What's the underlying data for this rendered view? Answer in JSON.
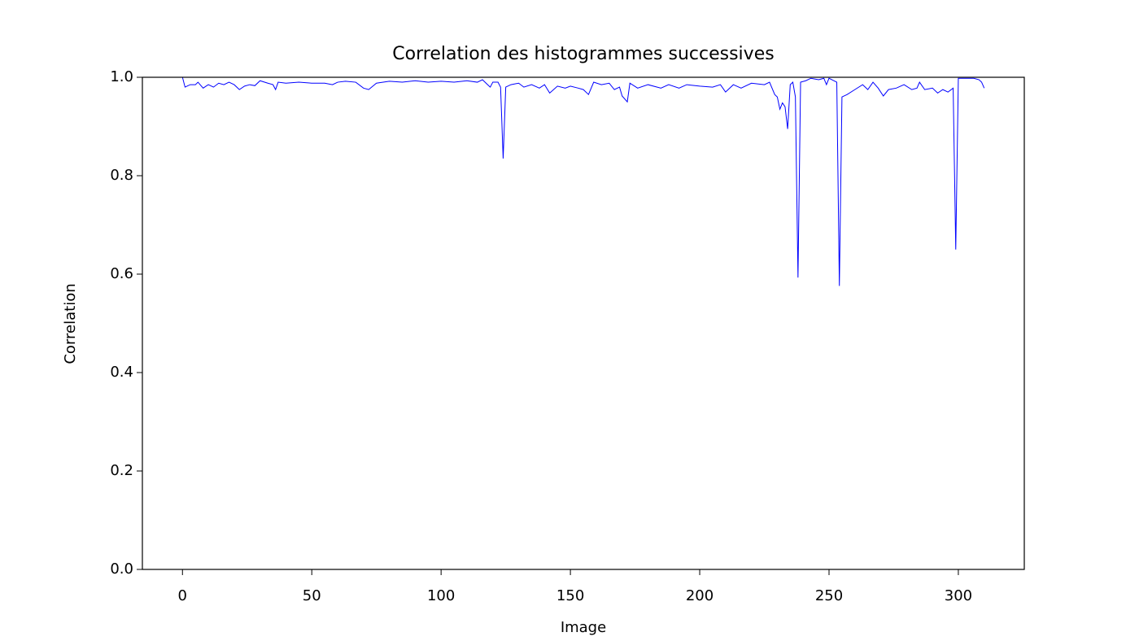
{
  "chart_data": {
    "type": "line",
    "title": "Correlation des histogrammes successives",
    "x_label": "Image",
    "y_label": "Correlation",
    "xlim": [
      -15.5,
      325.5
    ],
    "xticks": [
      0,
      50,
      100,
      150,
      200,
      250,
      300
    ],
    "ylim": [
      0,
      1
    ],
    "yticks": [
      {
        "value": 0,
        "label": "0.0"
      },
      0.2,
      0.4,
      0.6,
      0.8,
      {
        "value": 1,
        "label": "1.0"
      }
    ],
    "grid": false,
    "series": [
      {
        "color": "#0000ff",
        "x": [
          0,
          1,
          3,
          5,
          6,
          8,
          10,
          12,
          14,
          16,
          18,
          20,
          22,
          24,
          26,
          28,
          30,
          33,
          35,
          36,
          37,
          40,
          45,
          50,
          55,
          58,
          60,
          63,
          67,
          70,
          72,
          75,
          80,
          85,
          90,
          95,
          100,
          105,
          110,
          114,
          116,
          118,
          119,
          120,
          122,
          123,
          124,
          125,
          127,
          130,
          132,
          135,
          138,
          140,
          142,
          145,
          148,
          150,
          153,
          155,
          157,
          159,
          162,
          165,
          167,
          169,
          170,
          172,
          173,
          176,
          180,
          185,
          188,
          192,
          195,
          200,
          205,
          208,
          210,
          213,
          216,
          220,
          225,
          227,
          229,
          230,
          231,
          232,
          233,
          234,
          235,
          236,
          237,
          238,
          239,
          241,
          243,
          246,
          248,
          249,
          250,
          253,
          254,
          255,
          257,
          260,
          263,
          265,
          267,
          269,
          271,
          273,
          276,
          279,
          282,
          284,
          285,
          287,
          290,
          292,
          294,
          296,
          298,
          299,
          300,
          303,
          306,
          308,
          309,
          310
        ],
        "values": [
          1.0,
          0.98,
          0.985,
          0.985,
          0.99,
          0.978,
          0.985,
          0.98,
          0.988,
          0.985,
          0.99,
          0.985,
          0.975,
          0.982,
          0.985,
          0.983,
          0.993,
          0.988,
          0.985,
          0.975,
          0.99,
          0.988,
          0.99,
          0.988,
          0.988,
          0.985,
          0.99,
          0.992,
          0.99,
          0.978,
          0.975,
          0.988,
          0.992,
          0.99,
          0.993,
          0.99,
          0.992,
          0.99,
          0.993,
          0.99,
          0.995,
          0.985,
          0.98,
          0.99,
          0.99,
          0.98,
          0.835,
          0.98,
          0.985,
          0.988,
          0.98,
          0.985,
          0.978,
          0.985,
          0.968,
          0.982,
          0.978,
          0.982,
          0.978,
          0.975,
          0.965,
          0.99,
          0.985,
          0.988,
          0.975,
          0.98,
          0.962,
          0.95,
          0.988,
          0.978,
          0.985,
          0.978,
          0.985,
          0.978,
          0.985,
          0.982,
          0.98,
          0.985,
          0.97,
          0.985,
          0.978,
          0.988,
          0.985,
          0.99,
          0.965,
          0.96,
          0.935,
          0.948,
          0.94,
          0.895,
          0.985,
          0.99,
          0.96,
          0.593,
          0.99,
          0.993,
          0.998,
          0.995,
          0.998,
          0.985,
          0.998,
          0.99,
          0.576,
          0.96,
          0.965,
          0.975,
          0.985,
          0.975,
          0.99,
          0.978,
          0.962,
          0.975,
          0.978,
          0.985,
          0.975,
          0.978,
          0.99,
          0.975,
          0.978,
          0.968,
          0.975,
          0.97,
          0.978,
          0.65,
          0.998,
          0.998,
          0.998,
          0.995,
          0.99,
          0.978
        ]
      }
    ]
  }
}
